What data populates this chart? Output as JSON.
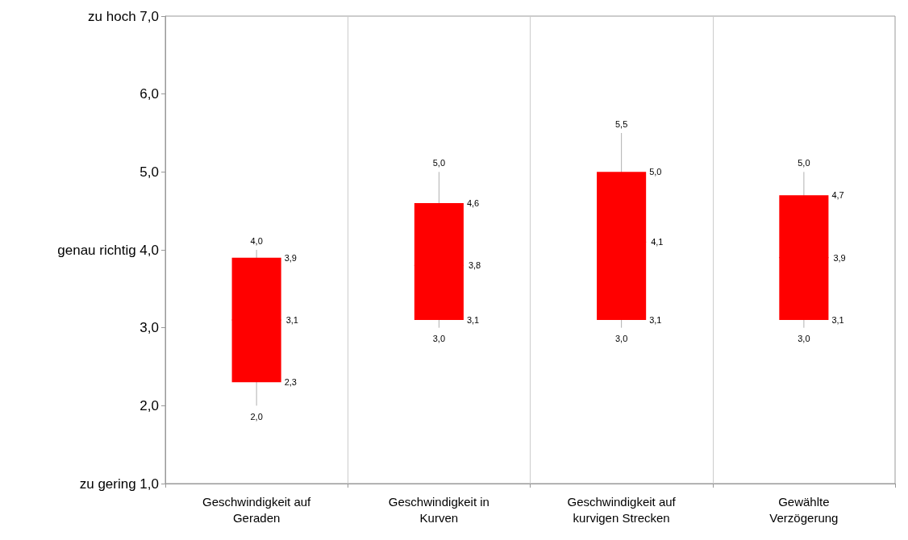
{
  "chart_data": {
    "type": "box",
    "categories": [
      "Geschwindigkeit auf\nGeraden",
      "Geschwindigkeit in\nKurven",
      "Geschwindigkeit auf\nkurvigen Strecken",
      "Gewählte\nVerzögerung"
    ],
    "series": [
      {
        "color": "#ff0000",
        "boxes": [
          {
            "low": 2.0,
            "q1": 2.3,
            "median": 3.1,
            "q3": 3.9,
            "high": 4.0
          },
          {
            "low": 3.0,
            "q1": 3.1,
            "median": 3.8,
            "q3": 4.6,
            "high": 5.0
          },
          {
            "low": 3.0,
            "q1": 3.1,
            "median": 4.1,
            "q3": 5.0,
            "high": 5.5
          },
          {
            "low": 3.0,
            "q1": 3.1,
            "median": 3.9,
            "q3": 4.7,
            "high": 5.0
          }
        ]
      }
    ],
    "ylim": [
      1,
      7
    ],
    "yticks": [
      {
        "value": 1,
        "label": "zu gering 1,0"
      },
      {
        "value": 2,
        "label": "2,0"
      },
      {
        "value": 3,
        "label": "3,0"
      },
      {
        "value": 4,
        "label": "genau richtig 4,0"
      },
      {
        "value": 5,
        "label": "5,0"
      },
      {
        "value": 6,
        "label": "6,0"
      },
      {
        "value": 7,
        "label": "zu hoch 7,0"
      }
    ],
    "grid": "x",
    "data_labels": true,
    "annotations": [
      "4,0",
      "3,9",
      "3,1",
      "2,3",
      "2,0",
      "5,0",
      "4,6",
      "3,8",
      "3,1",
      "3,0",
      "5,5",
      "5,0",
      "4,1",
      "3,1",
      "3,0",
      "5,0",
      "4,7",
      "3,9",
      "3,1",
      "3,0"
    ]
  }
}
